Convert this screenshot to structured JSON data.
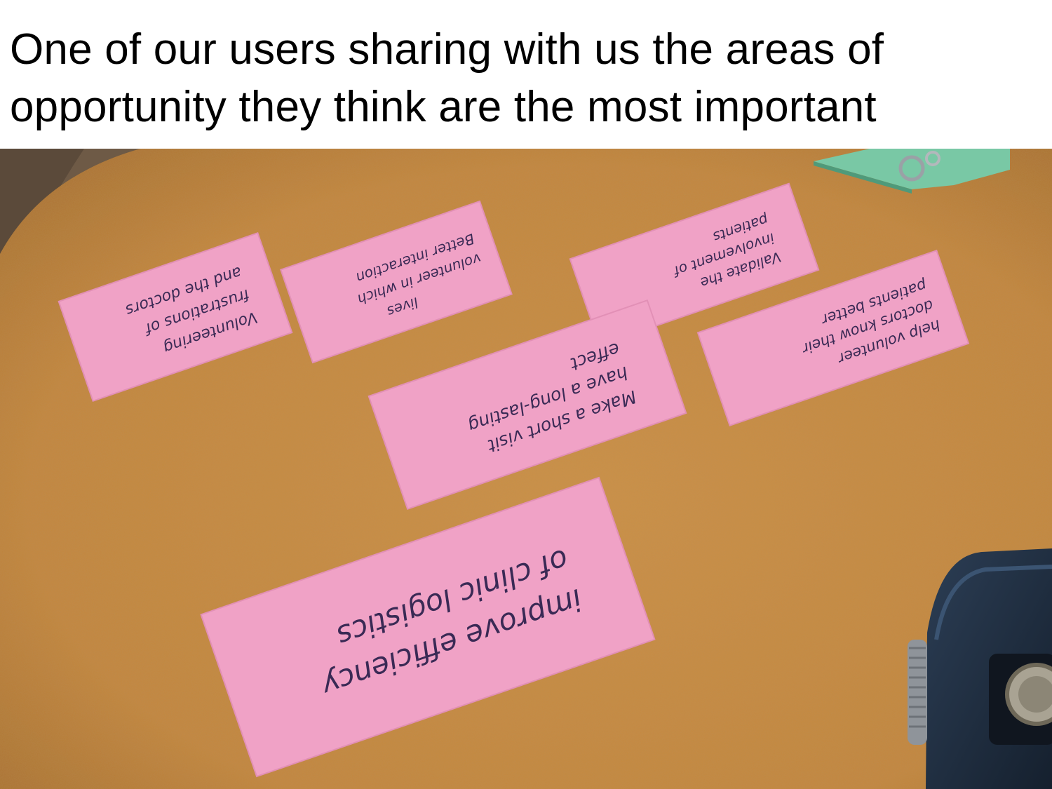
{
  "slide": {
    "title": "One of our users sharing with us the areas of opportunity they think are the most important"
  },
  "photo": {
    "colors": {
      "table": "#c68a45",
      "table_shadow": "#b07834",
      "card": "#f0a2c6",
      "card_edge": "#e290b6",
      "ink": "#3a2a55",
      "bag": "#223347",
      "green_item": "#79c8a5"
    },
    "cards": [
      {
        "lines": [
          "Volunteering",
          "frustrations of",
          "and the doctors"
        ],
        "orientation": "upside-down"
      },
      {
        "lines": [
          "lives",
          "volunteer in which",
          "Better interaction"
        ],
        "orientation": "upside-down"
      },
      {
        "lines": [
          "Validate the",
          "involvement of",
          "patients"
        ],
        "orientation": "upside-down"
      },
      {
        "lines": [
          "help volunteer",
          "doctors know their",
          "patients better"
        ],
        "orientation": "upside-down"
      },
      {
        "lines": [
          "Make a short visit",
          "have a long-lasting",
          "effect"
        ],
        "orientation": "upside-down"
      },
      {
        "lines": [
          "improve efficiency",
          "of clinic logistics"
        ],
        "orientation": "upside-down"
      }
    ]
  }
}
